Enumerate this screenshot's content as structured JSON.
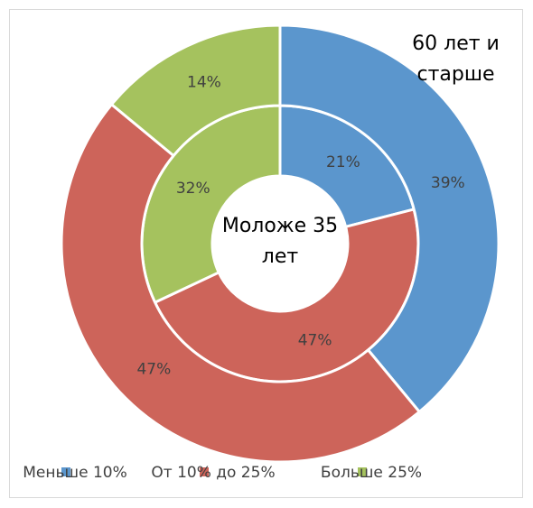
{
  "chart_data": {
    "type": "doughnut",
    "categories": [
      "Меньше 10%",
      "От 10% до 25%",
      "Больше 25%"
    ],
    "colors": [
      "#5b96cd",
      "#cd645a",
      "#a5c25e"
    ],
    "series": [
      {
        "name": "Моложе 35 лет",
        "values": [
          21,
          47,
          32
        ],
        "value_labels": [
          "21%",
          "47%",
          "32%"
        ]
      },
      {
        "name": "60 лет и старше",
        "values": [
          39,
          47,
          14
        ],
        "value_labels": [
          "39%",
          "47%",
          "14%"
        ]
      }
    ],
    "legend": "bottom"
  }
}
